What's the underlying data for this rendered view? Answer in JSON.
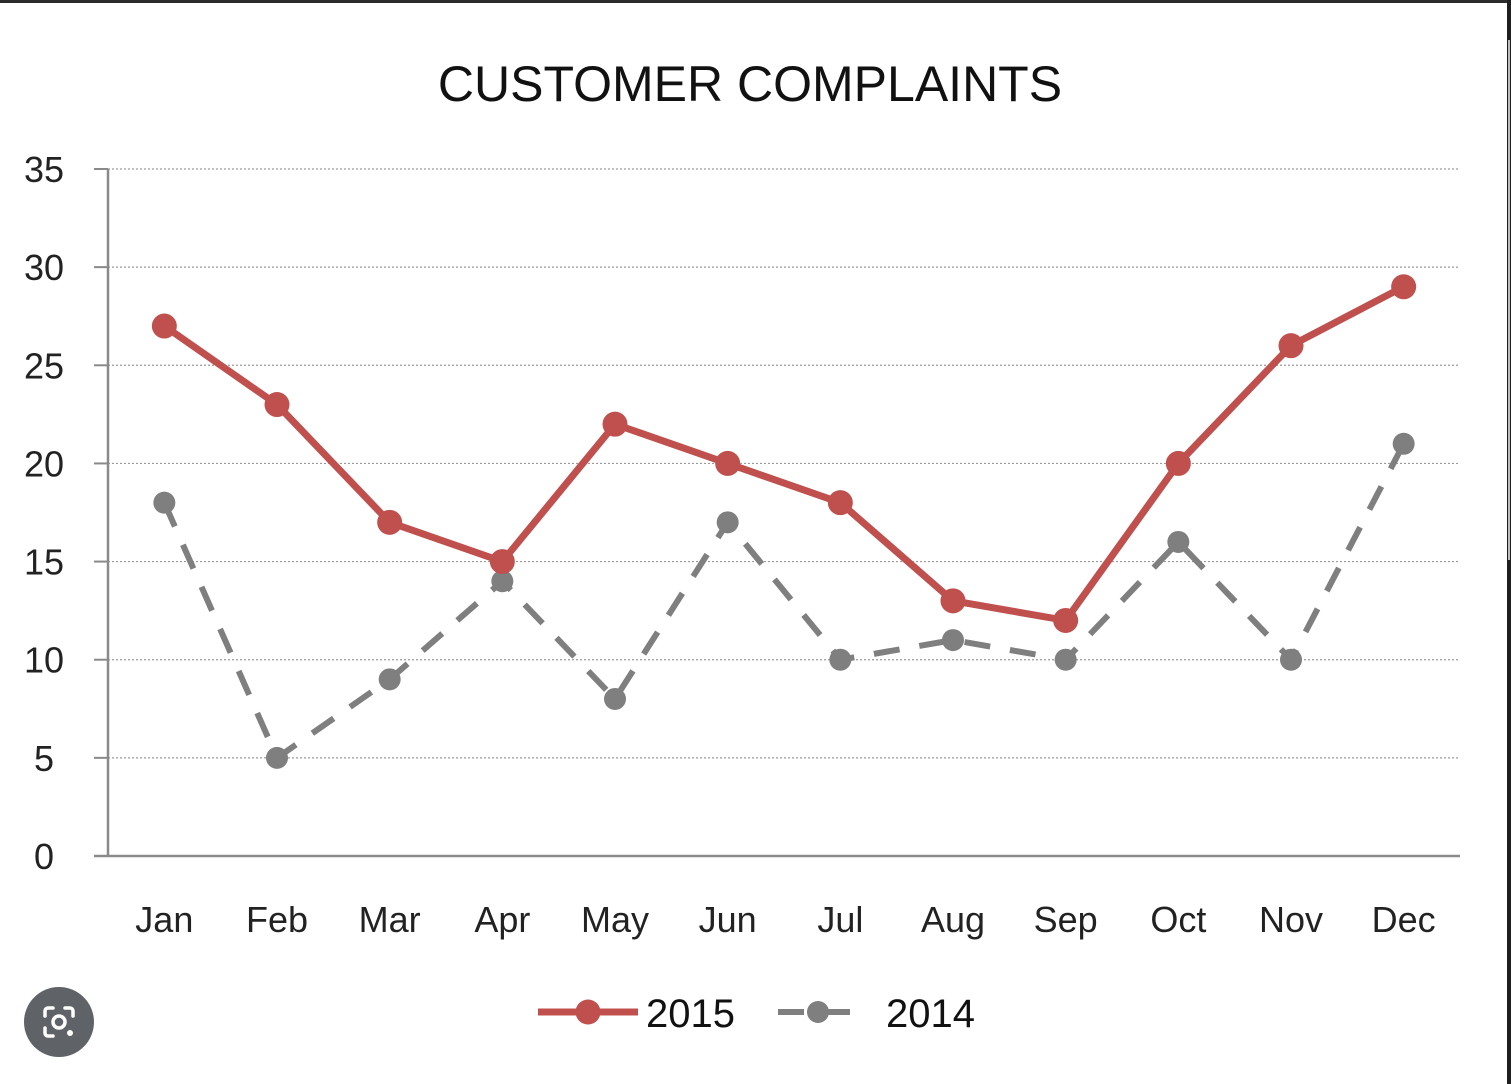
{
  "chart_data": {
    "type": "line",
    "title": "CUSTOMER COMPLAINTS",
    "categories": [
      "Jan",
      "Feb",
      "Mar",
      "Apr",
      "May",
      "Jun",
      "Jul",
      "Aug",
      "Sep",
      "Oct",
      "Nov",
      "Dec"
    ],
    "series": [
      {
        "name": "2015",
        "values": [
          27,
          23,
          17,
          15,
          22,
          20,
          18,
          13,
          12,
          20,
          26,
          29
        ],
        "color": "#c0504d",
        "style": "solid"
      },
      {
        "name": "2014",
        "values": [
          18,
          5,
          9,
          14,
          8,
          17,
          10,
          11,
          10,
          16,
          10,
          21
        ],
        "color": "#7f7f7f",
        "style": "dashed"
      }
    ],
    "ylim": [
      0,
      35
    ],
    "yticks": [
      0,
      5,
      10,
      15,
      20,
      25,
      30,
      35
    ],
    "xlabel": "",
    "ylabel": "",
    "grid": true,
    "legend_position": "bottom"
  },
  "overlay": {
    "lens_icon": "google-lens-icon"
  }
}
